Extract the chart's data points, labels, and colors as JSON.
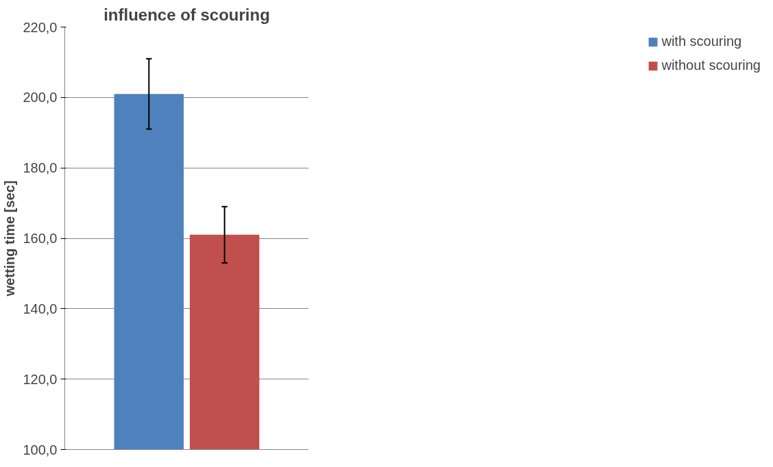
{
  "chart_data": {
    "type": "bar",
    "title": "influence of scouring",
    "ylabel": "wetting time [sec]",
    "categories": [
      null
    ],
    "series": [
      {
        "name": "with scouring",
        "color": "#4f81bd",
        "values": [
          201
        ],
        "errors": [
          10
        ]
      },
      {
        "name": "without scouring",
        "color": "#c0504d",
        "values": [
          161
        ],
        "errors": [
          8
        ]
      }
    ],
    "ylim": [
      100,
      220
    ],
    "yticks": [
      {
        "value": 100,
        "label": "100,0"
      },
      {
        "value": 120,
        "label": "120,0"
      },
      {
        "value": 140,
        "label": "140,0"
      },
      {
        "value": 160,
        "label": "160,0"
      },
      {
        "value": 180,
        "label": "180,0"
      },
      {
        "value": 200,
        "label": "200,0"
      },
      {
        "value": 220,
        "label": "220,0"
      }
    ],
    "grid": "y",
    "legend": "right",
    "tick_labels": "y"
  }
}
